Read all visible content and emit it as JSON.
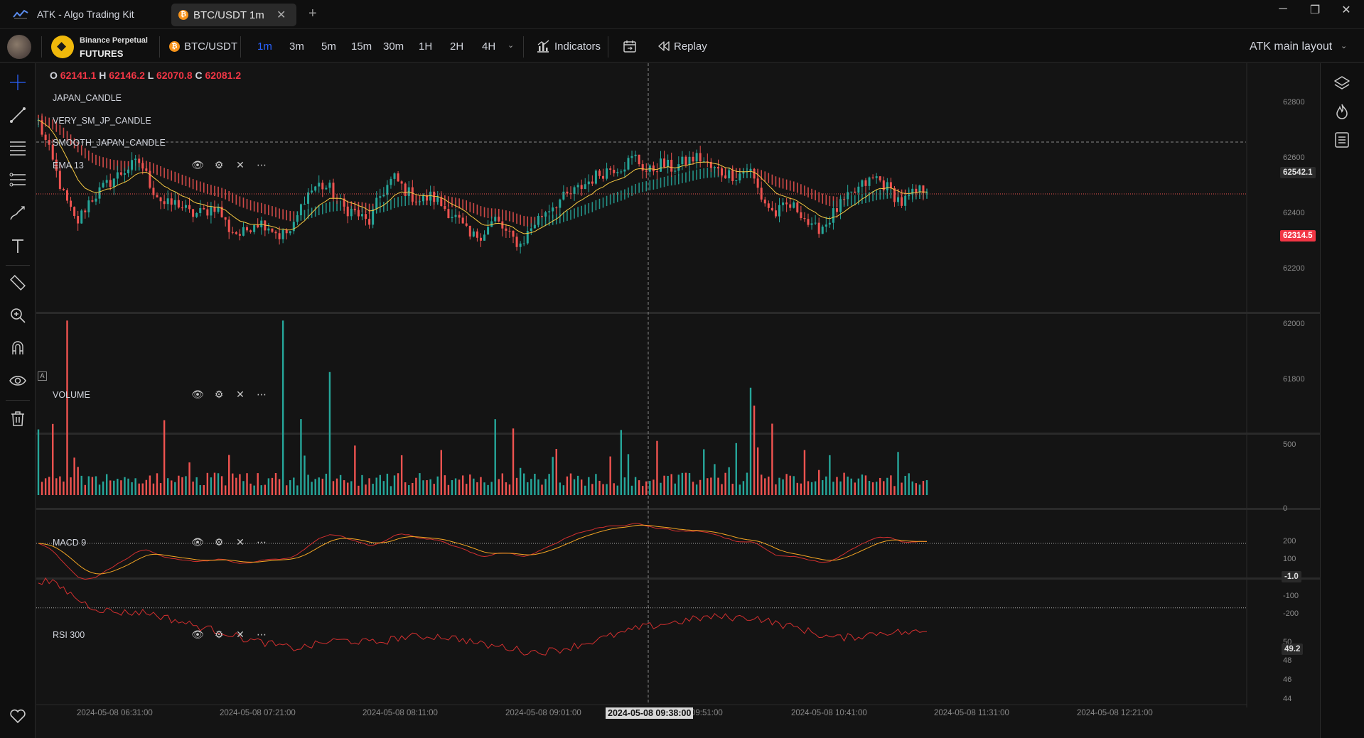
{
  "app": {
    "title": "ATK - Algo Trading Kit"
  },
  "tab": {
    "label": "BTC/USDT 1m",
    "coin_glyph": "₿"
  },
  "window_controls": {
    "minimize": "─",
    "restore": "❐",
    "close": "✕"
  },
  "toolbar": {
    "exchange_line1": "Binance Perpetual",
    "exchange_line2": "FUTURES",
    "symbol": "BTC/USDT",
    "timeframes": [
      "1m",
      "3m",
      "5m",
      "15m",
      "30m",
      "1H",
      "2H",
      "4H"
    ],
    "active_timeframe": "1m",
    "indicators_label": "Indicators",
    "replay_label": "Replay",
    "layout_label": "ATK main layout"
  },
  "legend": {
    "ohlc": {
      "o_label": "O",
      "o": "62141.1",
      "h_label": "H",
      "h": "62146.2",
      "l_label": "L",
      "l": "62070.8",
      "c_label": "C",
      "c": "62081.2"
    },
    "indicators": [
      "JAPAN_CANDLE",
      "VERY_SM_JP_CANDLE",
      "SMOOTH_JAPAN_CANDLE",
      "EMA 13"
    ],
    "auto_badge": "A"
  },
  "panes": {
    "volume": {
      "label": "VOLUME"
    },
    "macd": {
      "label": "MACD 9"
    },
    "rsi": {
      "label": "RSI 300"
    }
  },
  "axes": {
    "price_ticks": [
      "62800",
      "62600",
      "62400",
      "62200",
      "62000",
      "61800"
    ],
    "volume_ticks": [
      "500",
      "0"
    ],
    "macd_ticks": [
      "200",
      "100",
      "-100",
      "-200"
    ],
    "rsi_ticks": [
      "50",
      "48",
      "46",
      "44"
    ],
    "crosshair_price": "62542.1",
    "last_price": "62314.5",
    "macd_value": "-1.0",
    "rsi_value": "49.2"
  },
  "time_axis": {
    "ticks": [
      "2024-05-08 06:31:00",
      "2024-05-08 07:21:00",
      "2024-05-08 08:11:00",
      "2024-05-08 09:01:00",
      "09:51:00",
      "2024-05-08 10:41:00",
      "2024-05-08 11:31:00",
      "2024-05-08 12:21:00"
    ],
    "cursor": "2024-05-08 09:38:00"
  },
  "colors": {
    "up": "#26a69a",
    "down": "#ef5350",
    "ema": "#f5c842",
    "accent": "#2962ff",
    "last_price_bg": "#f23645",
    "rsi_line": "#d32f2f",
    "macd_signal": "#f5a623"
  },
  "chart_data": {
    "type": "candlestick",
    "symbol": "BTC/USDT",
    "interval": "1m",
    "price_range": [
      61800,
      62850
    ],
    "close_path": [
      62620,
      62470,
      62300,
      62180,
      62280,
      62330,
      62380,
      62420,
      62450,
      62330,
      62260,
      62270,
      62220,
      62230,
      62260,
      62160,
      62130,
      62190,
      62180,
      62130,
      62150,
      62300,
      62350,
      62330,
      62250,
      62230,
      62180,
      62310,
      62380,
      62320,
      62280,
      62300,
      62250,
      62200,
      62120,
      62140,
      62200,
      62130,
      62090,
      62180,
      62240,
      62280,
      62310,
      62350,
      62390,
      62420,
      62430,
      62470,
      62400,
      62440,
      62420,
      62450,
      62470,
      62420,
      62400,
      62390,
      62420,
      62290,
      62220,
      62260,
      62240,
      62150,
      62180,
      62250,
      62300,
      62350,
      62380,
      62330,
      62270,
      62310,
      62340
    ],
    "ema_period": 13,
    "volume_range": [
      0,
      800
    ],
    "macd_range": [
      -220,
      220
    ],
    "rsi_range": [
      43,
      51
    ]
  }
}
